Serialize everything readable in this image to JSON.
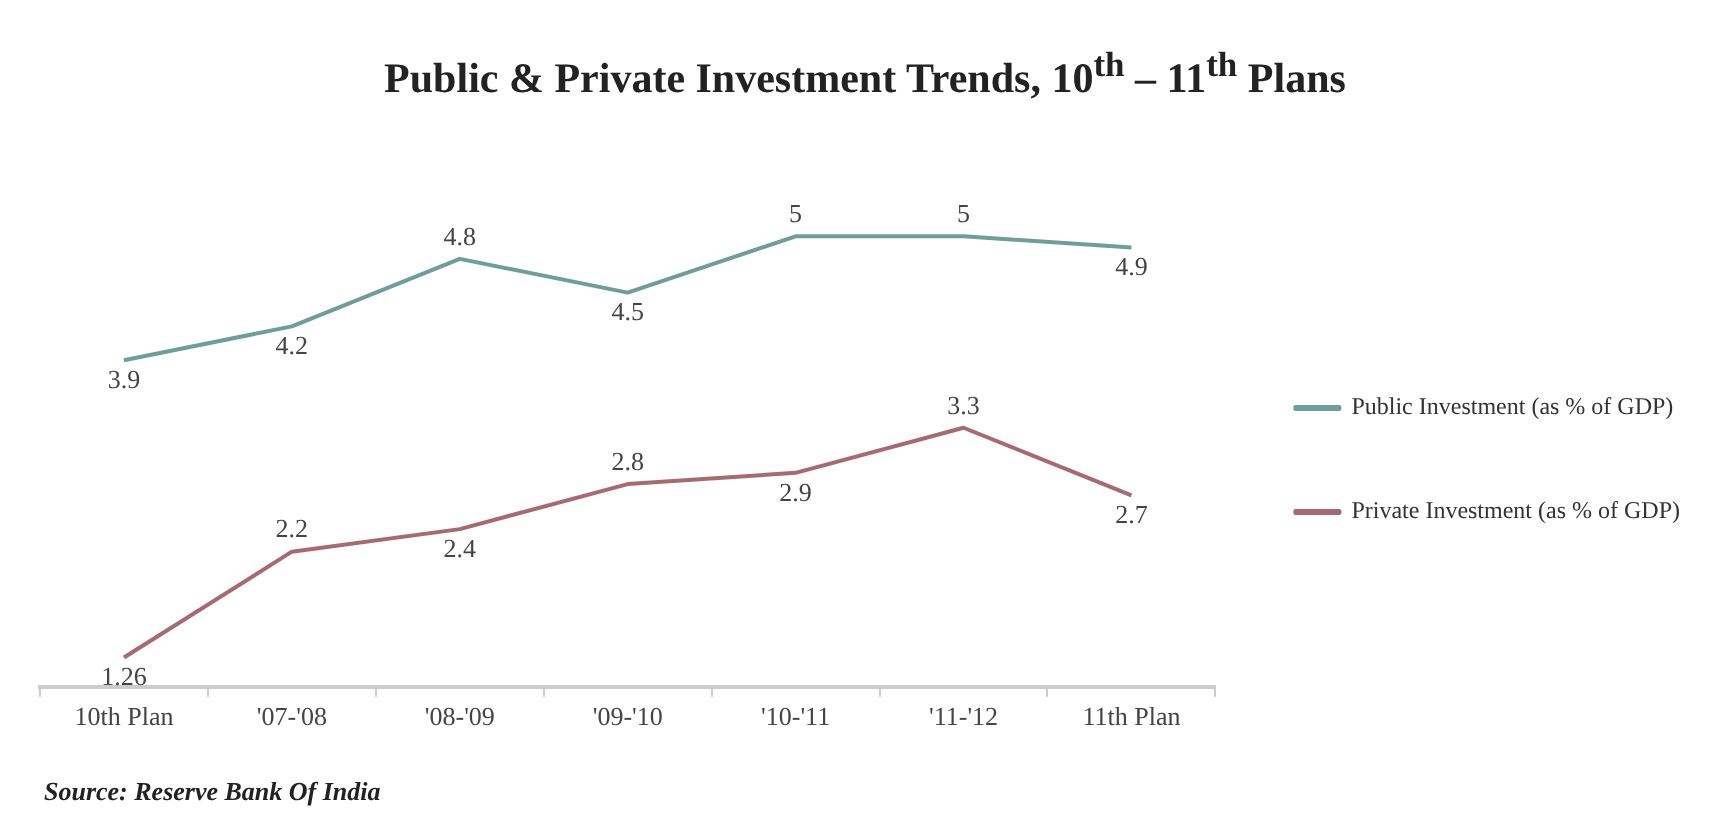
{
  "chart_data": {
    "type": "line",
    "title": "Public & Private Investment Trends, 10$^{th}$ – 11$^{th}$ Plans",
    "categories": [
      "10th Plan",
      "'07-'08",
      "'08-'09",
      "'09-'10",
      "'10-'11",
      "'11-'12",
      "11th Plan"
    ],
    "series": [
      {
        "name": "Public Investment (as % of GDP)",
        "color": "#6e9e9c",
        "values": [
          3.9,
          4.2,
          4.8,
          4.5,
          5,
          5,
          4.9
        ]
      },
      {
        "name": "Private Investment (as % of GDP)",
        "color": "#a86a72",
        "values": [
          1.26,
          2.2,
          2.4,
          2.8,
          2.9,
          3.3,
          2.7
        ]
      }
    ],
    "data_labels": true,
    "legend": "right",
    "grid": false,
    "marker": "none",
    "line_style": "solid",
    "annotations": [
      "Source: Reserve Bank Of India"
    ]
  }
}
